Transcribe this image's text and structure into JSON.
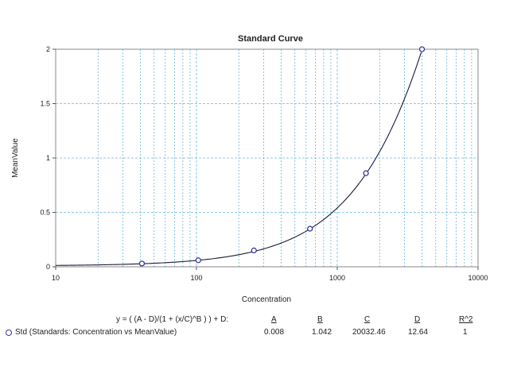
{
  "chart_data": {
    "type": "scatter",
    "title": "Standard Curve",
    "xlabel": "Concentration",
    "ylabel": "MeanValue",
    "x_scale": "log",
    "xlim": [
      10,
      10000
    ],
    "ylim": [
      0,
      2
    ],
    "x_ticks": [
      "10",
      "100",
      "1000",
      "10000"
    ],
    "y_ticks": [
      "0",
      "0.5",
      "1",
      "1.5",
      "2"
    ],
    "grid": true,
    "colors": {
      "points": "#3a3a9a",
      "curve": "#1a1a3a",
      "grid": "#6cb6d8"
    },
    "series": [
      {
        "name": "Std (Standards: Concentration vs MeanValue)",
        "x": [
          41,
          103,
          256,
          640,
          1600,
          4000
        ],
        "y": [
          0.03,
          0.06,
          0.15,
          0.35,
          0.86,
          2.0
        ]
      }
    ],
    "fit": {
      "equation": "y = ( (A - D)/(1 + (x/C)^B ) ) + D:",
      "A": 0.008,
      "B": 1.042,
      "C": 20032.46,
      "D": 12.64
    }
  },
  "stats_table": {
    "equation": "y = ( (A - D)/(1 + (x/C)^B ) ) + D:",
    "headers": [
      "A",
      "B",
      "C",
      "D",
      "R^2"
    ],
    "row_label": "Std (Standards: Concentration vs MeanValue)",
    "values": [
      "0.008",
      "1.042",
      "20032.46",
      "12.64",
      "1"
    ]
  }
}
